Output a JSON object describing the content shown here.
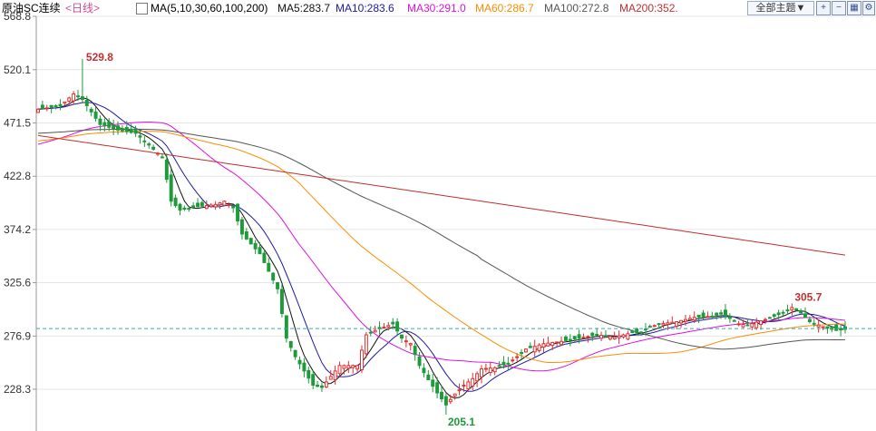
{
  "header": {
    "title": "原油SC连续",
    "period": "<日线>",
    "ma_legend": "MA(5,10,30,60,100,200)",
    "ma_values": [
      {
        "label": "MA5:283.7",
        "color": "#111111"
      },
      {
        "label": "MA10:283.6",
        "color": "#1a1aa6"
      },
      {
        "label": "MA30:291.0",
        "color": "#e010e0"
      },
      {
        "label": "MA60:286.7",
        "color": "#ff8c00"
      },
      {
        "label": "MA100:272.8",
        "color": "#555555"
      },
      {
        "label": "MA200:352.",
        "color": "#c03030"
      }
    ],
    "theme_button": "全部主题▼",
    "icons": [
      "zoom-in-icon",
      "zoom-out-icon",
      "grid-icon",
      "settings-icon"
    ]
  },
  "colors": {
    "up": "#e03030",
    "down": "#1e9a3a",
    "dashed_line": "#3aaaaa",
    "background": "#ffffff"
  },
  "chart_data": {
    "type": "candlestick",
    "ylim": [
      205,
      568.8
    ],
    "yticks": [
      "568.8",
      "520.1",
      "471.5",
      "422.8",
      "374.2",
      "325.6",
      "276.9",
      "228.3"
    ],
    "annotations": {
      "high": "529.8",
      "low": "205.1",
      "recent_high": "305.7"
    },
    "current_level": 283.7,
    "series": [
      {
        "name": "MA5",
        "color": "#111111"
      },
      {
        "name": "MA10",
        "color": "#1a1aa6"
      },
      {
        "name": "MA30",
        "color": "#e010e0"
      },
      {
        "name": "MA60",
        "color": "#ff8c00"
      },
      {
        "name": "MA100",
        "color": "#555555"
      },
      {
        "name": "MA200",
        "color": "#c03030"
      }
    ]
  }
}
